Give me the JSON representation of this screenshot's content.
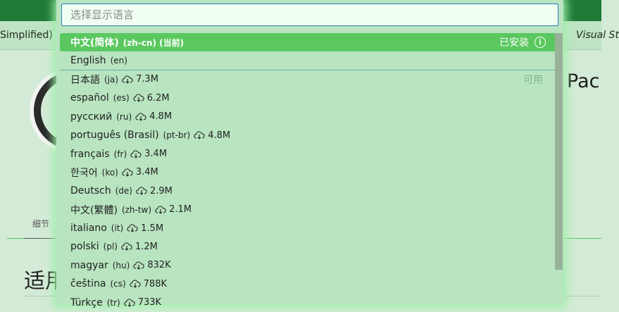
{
  "background": {
    "tab_left": "Simplified) (",
    "tab_right": "Visual St",
    "title_partial": "Pac",
    "detail_tab": "细节",
    "section_heading_partial": "适用"
  },
  "picker": {
    "placeholder": "选择显示语言",
    "value": "",
    "installed_label": "已安装",
    "available_label": "可用",
    "items": [
      {
        "name": "中文(简体)",
        "code": "(zh-cn) (当前)",
        "size": "",
        "selected": true
      },
      {
        "name": "English",
        "code": "(en)",
        "size": ""
      },
      {
        "name": "日本語",
        "code": "(ja)",
        "size": "7.3M"
      },
      {
        "name": "español",
        "code": "(es)",
        "size": "6.2M"
      },
      {
        "name": "русский",
        "code": "(ru)",
        "size": "4.8M"
      },
      {
        "name": "português (Brasil)",
        "code": "(pt-br)",
        "size": "4.8M"
      },
      {
        "name": "français",
        "code": "(fr)",
        "size": "3.4M"
      },
      {
        "name": "한국어",
        "code": "(ko)",
        "size": "3.4M"
      },
      {
        "name": "Deutsch",
        "code": "(de)",
        "size": "2.9M"
      },
      {
        "name": "中文(繁體)",
        "code": "(zh-tw)",
        "size": "2.1M"
      },
      {
        "name": "italiano",
        "code": "(it)",
        "size": "1.5M"
      },
      {
        "name": "polski",
        "code": "(pl)",
        "size": "1.2M"
      },
      {
        "name": "magyar",
        "code": "(hu)",
        "size": "832K"
      },
      {
        "name": "čeština",
        "code": "(cs)",
        "size": "788K"
      },
      {
        "name": "Türkçe",
        "code": "(tr)",
        "size": "733K"
      }
    ]
  },
  "colors": {
    "accent": "#5bc85f",
    "popup_bg": "#b8e4c0",
    "header": "#1f7a38"
  },
  "icons": {
    "download": "cloud-download-icon",
    "info": "info-icon"
  }
}
